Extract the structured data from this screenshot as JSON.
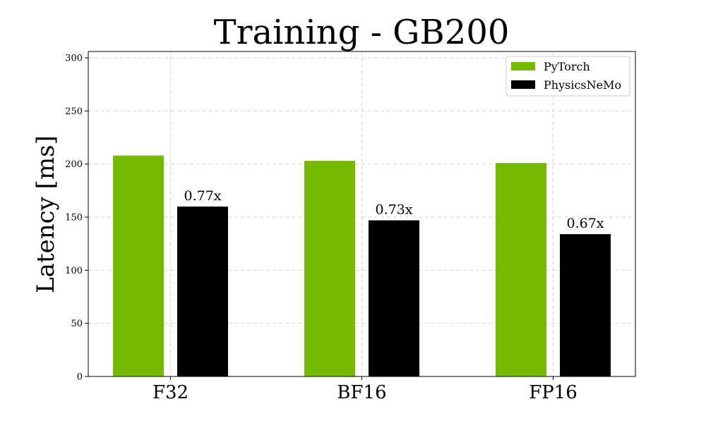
{
  "chart_data": {
    "type": "bar",
    "title": "Training - GB200",
    "xlabel": "",
    "ylabel": "Latency [ms]",
    "categories": [
      "F32",
      "BF16",
      "FP16"
    ],
    "series": [
      {
        "name": "PyTorch",
        "color": "#76b900",
        "values": [
          208,
          203,
          201
        ]
      },
      {
        "name": "PhysicsNeMo",
        "color": "#000000",
        "values": [
          160,
          147,
          134
        ]
      }
    ],
    "annotations": [
      "0.77x",
      "0.73x",
      "0.67x"
    ],
    "ylim": [
      0,
      306
    ],
    "yticks": [
      0,
      50,
      100,
      150,
      200,
      250,
      300
    ],
    "grid": true,
    "legend_position": "top-right"
  }
}
